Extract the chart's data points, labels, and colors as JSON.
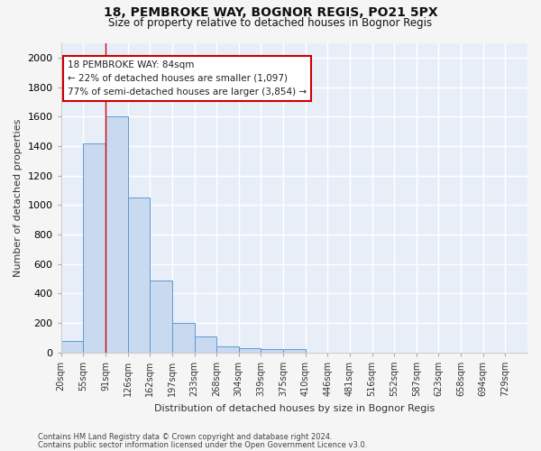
{
  "title1": "18, PEMBROKE WAY, BOGNOR REGIS, PO21 5PX",
  "title2": "Size of property relative to detached houses in Bognor Regis",
  "xlabel": "Distribution of detached houses by size in Bognor Regis",
  "ylabel": "Number of detached properties",
  "footnote1": "Contains HM Land Registry data © Crown copyright and database right 2024.",
  "footnote2": "Contains public sector information licensed under the Open Government Licence v3.0.",
  "bin_labels": [
    "20sqm",
    "55sqm",
    "91sqm",
    "126sqm",
    "162sqm",
    "197sqm",
    "233sqm",
    "268sqm",
    "304sqm",
    "339sqm",
    "375sqm",
    "410sqm",
    "446sqm",
    "481sqm",
    "516sqm",
    "552sqm",
    "587sqm",
    "623sqm",
    "658sqm",
    "694sqm",
    "729sqm"
  ],
  "bar_values": [
    80,
    1420,
    1600,
    1050,
    490,
    200,
    105,
    40,
    28,
    22,
    20,
    0,
    0,
    0,
    0,
    0,
    0,
    0,
    0,
    0,
    0
  ],
  "bar_color": "#c8d9f0",
  "bar_edge_color": "#5b9bd5",
  "background_color": "#e8eef8",
  "grid_color": "#ffffff",
  "red_line_x": 2.0,
  "annotation_text": "18 PEMBROKE WAY: 84sqm\n← 22% of detached houses are smaller (1,097)\n77% of semi-detached houses are larger (3,854) →",
  "annotation_box_color": "#ffffff",
  "annotation_border_color": "#cc0000",
  "ylim": [
    0,
    2100
  ],
  "yticks": [
    0,
    200,
    400,
    600,
    800,
    1000,
    1200,
    1400,
    1600,
    1800,
    2000
  ]
}
